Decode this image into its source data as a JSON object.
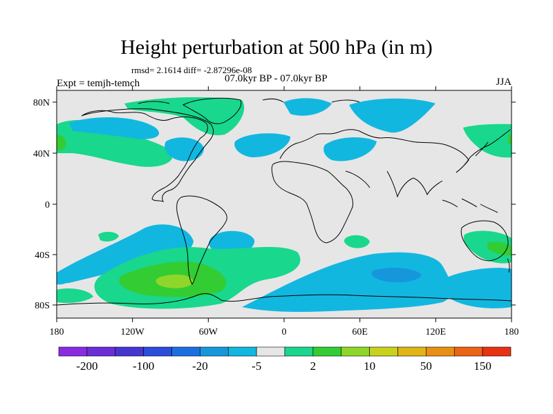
{
  "header": {
    "title": "Height perturbation at 500 hPa (in m)",
    "stats": "rmsd= 2.1614 diff= -2.87296e-08",
    "left_label": "Expt = temjh-temch",
    "center_label": "07.0kyr BP - 07.0kyr BP",
    "right_label": "JJA"
  },
  "map": {
    "projection": "cylindrical equidistant",
    "land_color": "#e6e6e6",
    "x_ticks": [
      "180",
      "120W",
      "60W",
      "0",
      "60E",
      "120E",
      "180"
    ],
    "y_ticks": [
      "80N",
      "40N",
      "0",
      "40S",
      "80S"
    ]
  },
  "colorbar": {
    "colors": [
      "#8a2be2",
      "#6a2fd6",
      "#4636d0",
      "#2a4ddb",
      "#1c6fe0",
      "#1697dc",
      "#12b7e0",
      "#e6e6e6",
      "#19d78c",
      "#33cc33",
      "#8fd62a",
      "#c9d11c",
      "#e0b514",
      "#e89014",
      "#ea6414",
      "#e83214"
    ],
    "labels": [
      "-200",
      "-100",
      "-20",
      "-5",
      "2",
      "10",
      "50",
      "150"
    ]
  }
}
